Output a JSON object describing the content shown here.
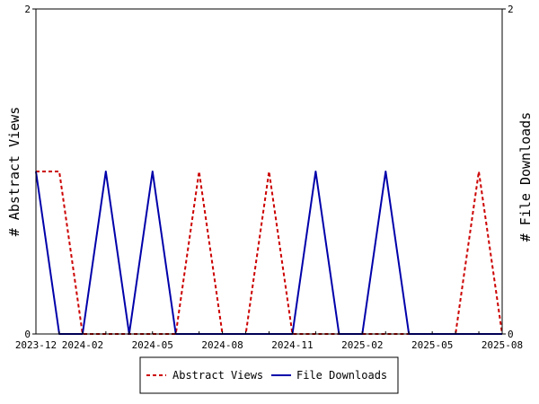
{
  "chart_data": {
    "type": "line",
    "x_ticks": [
      "2023-12",
      "2024-02",
      "2024-05",
      "2024-08",
      "2024-11",
      "2025-02",
      "2025-05",
      "2025-08"
    ],
    "x": [
      "2023-12",
      "2024-01",
      "2024-02",
      "2024-03",
      "2024-04",
      "2024-05",
      "2024-06",
      "2024-07",
      "2024-08",
      "2024-09",
      "2024-10",
      "2024-11",
      "2024-12",
      "2025-01",
      "2025-02",
      "2025-03",
      "2025-04",
      "2025-05",
      "2025-06",
      "2025-07",
      "2025-08"
    ],
    "series": [
      {
        "name": "Abstract Views",
        "axis": "left",
        "color": "#cc0000",
        "dash": "dashed",
        "values": [
          1,
          1,
          0,
          0,
          0,
          0,
          0,
          1,
          0,
          0,
          1,
          0,
          0,
          0,
          0,
          0,
          0,
          0,
          0,
          1,
          0
        ]
      },
      {
        "name": "File Downloads",
        "axis": "right",
        "color": "#0000aa",
        "dash": "solid",
        "values": [
          1,
          0,
          0,
          1,
          0,
          1,
          0,
          0,
          0,
          0,
          0,
          0,
          1,
          0,
          0,
          1,
          0,
          0,
          0,
          0,
          0
        ]
      }
    ],
    "ylabel_left": "# Abstract Views",
    "ylabel_right": "# File Downloads",
    "ylim_left": [
      0,
      2
    ],
    "ylim_right": [
      0,
      2
    ],
    "y_ticks_left": [
      "0",
      "2"
    ],
    "y_ticks_right": [
      "0",
      "2"
    ],
    "grid": false,
    "legend_position": "bottom"
  }
}
